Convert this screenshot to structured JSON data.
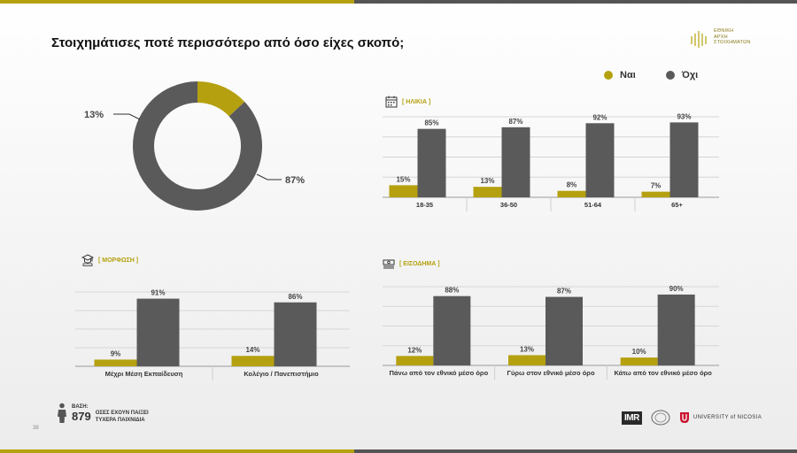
{
  "header": {
    "title": "Στοιχημάτισες ποτέ περισσότερο από όσο είχες σκοπό;"
  },
  "logo": {
    "lines": [
      "ΕΘΝΙΚΗ",
      "ΑΡΧΗ",
      "ΣΤΟΙΧΗΜΑΤΩΝ"
    ]
  },
  "legend": [
    {
      "name": "Ναι",
      "color": "#b5a10f"
    },
    {
      "name": "Όχι",
      "color": "#5a5a5a"
    }
  ],
  "sections": {
    "age": "[ ΗΛΙΚΙΑ ]",
    "education": "[ ΜΟΡΦΩΣΗ ]",
    "income": "[ ΕΙΣΟΔΗΜΑ ]"
  },
  "chart_data": [
    {
      "type": "pie",
      "id": "overall",
      "categories": [
        "Ναι",
        "Όχι"
      ],
      "values": [
        13,
        87
      ],
      "labels": [
        "13%",
        "87%"
      ],
      "colors": [
        "#b5a10f",
        "#5a5a5a"
      ]
    },
    {
      "type": "bar",
      "id": "age",
      "categories": [
        "18-35",
        "36-50",
        "51-64",
        "65+"
      ],
      "series": [
        {
          "name": "Ναι",
          "values": [
            15,
            13,
            8,
            7
          ],
          "color": "#b5a10f"
        },
        {
          "name": "Όχι",
          "values": [
            85,
            87,
            92,
            93
          ],
          "color": "#5a5a5a"
        }
      ],
      "ylim": [
        0,
        100
      ]
    },
    {
      "type": "bar",
      "id": "education",
      "categories": [
        "Μέχρι Μέση Εκπαίδευση",
        "Κολέγιο / Πανεπιστήμιο"
      ],
      "series": [
        {
          "name": "Ναι",
          "values": [
            9,
            14
          ],
          "color": "#b5a10f"
        },
        {
          "name": "Όχι",
          "values": [
            91,
            86
          ],
          "color": "#5a5a5a"
        }
      ],
      "ylim": [
        0,
        100
      ]
    },
    {
      "type": "bar",
      "id": "income",
      "categories": [
        "Πάνω από τον εθνικό μέσο όρο",
        "Γύρω στον εθνικό μέσο όρο",
        "Κάτω από τον εθνικό μέσο όρο"
      ],
      "series": [
        {
          "name": "Ναι",
          "values": [
            12,
            13,
            10
          ],
          "color": "#b5a10f"
        },
        {
          "name": "Όχι",
          "values": [
            88,
            87,
            90
          ],
          "color": "#5a5a5a"
        }
      ],
      "ylim": [
        0,
        100
      ]
    }
  ],
  "footer": {
    "base_label": "ΒΑΣΗ:",
    "base_number": "879",
    "base_line1": "ΟΣΕΣ ΕΧΟΥΝ ΠΑΙΞΕΙ",
    "base_line2": "ΤΥΧΕΡΑ ΠΑΙΧΝΙΔΙΑ",
    "page_number": "38",
    "imr": "IMR",
    "university": "UNIVERSITY of NICOSIA"
  }
}
